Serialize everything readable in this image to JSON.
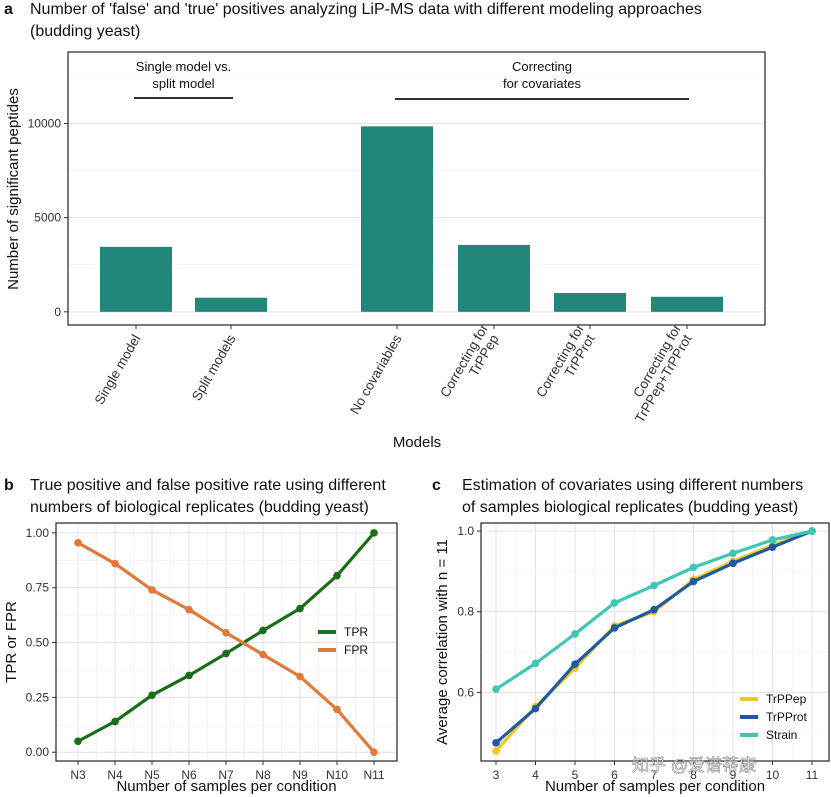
{
  "watermark": "知乎 @爱谱蒂康",
  "colors": {
    "bar": "#22867a",
    "tpr": "#1a6e1a",
    "fpr": "#e07a3a",
    "trppep": "#f2c521",
    "trpprot": "#1d5aa0",
    "strain": "#3fc6b4"
  },
  "chart_data": [
    {
      "id": "a",
      "type": "bar",
      "letter": "a",
      "title_lines": [
        "Number of 'false' and 'true' positives analyzing LiP-MS data with different modeling approaches",
        "(budding yeast)"
      ],
      "xlabel": "Models",
      "ylabel": "Number of significant peptides",
      "ylim": [
        -700,
        13800
      ],
      "yticks": [
        0,
        5000,
        10000
      ],
      "categories": [
        {
          "lines": [
            "Single model"
          ],
          "value": 3450
        },
        {
          "lines": [
            "Split models"
          ],
          "value": 750
        },
        {
          "lines": [
            "No covariables"
          ],
          "value": 9850
        },
        {
          "lines": [
            "Correcting for",
            "TrPPep"
          ],
          "value": 3550
        },
        {
          "lines": [
            "Correcting for",
            "TrPProt"
          ],
          "value": 1000
        },
        {
          "lines": [
            "Correcting for",
            "TrPPep+TrPProt"
          ],
          "value": 800
        }
      ],
      "brackets": [
        {
          "lines": [
            "Single model vs.",
            "split model"
          ],
          "from": 0,
          "to": 1
        },
        {
          "lines": [
            "Correcting",
            "for covariates"
          ],
          "from": 2,
          "to": 5
        }
      ]
    },
    {
      "id": "b",
      "type": "line",
      "letter": "b",
      "title_lines": [
        "True positive and false positive rate using different",
        "numbers of biological replicates (budding yeast)"
      ],
      "xlabel": "Number of samples per condition",
      "ylabel": "TPR or FPR",
      "categories": [
        "N3",
        "N4",
        "N5",
        "N6",
        "N7",
        "N8",
        "N9",
        "N10",
        "N11"
      ],
      "ylim": [
        -0.04,
        1.045
      ],
      "yticks": [
        "0.00",
        "0.25",
        "0.50",
        "0.75",
        "1.00"
      ],
      "legend_position": "right",
      "series": [
        {
          "name": "TPR",
          "color": "#1a6e1a",
          "values": [
            0.05,
            0.14,
            0.26,
            0.35,
            0.45,
            0.555,
            0.655,
            0.805,
            1.0
          ]
        },
        {
          "name": "FPR",
          "color": "#e07a3a",
          "values": [
            0.955,
            0.86,
            0.74,
            0.65,
            0.545,
            0.445,
            0.345,
            0.195,
            0.0
          ]
        }
      ]
    },
    {
      "id": "c",
      "type": "line",
      "letter": "c",
      "title_lines": [
        "Estimation of covariates using different numbers",
        "of samples biological replicates (budding yeast)"
      ],
      "xlabel": "Number of samples per condition",
      "ylabel": "Average correlation with n = 11",
      "x": [
        "3",
        "4",
        "5",
        "6",
        "7",
        "8",
        "9",
        "10",
        "11"
      ],
      "ylim": [
        0.43,
        1.02
      ],
      "yticks": [
        "0.6",
        "0.8",
        "1.0"
      ],
      "legend_position": "bottom-right",
      "series": [
        {
          "name": "TrPPep",
          "color": "#f2c521",
          "values": [
            0.455,
            0.565,
            0.66,
            0.765,
            0.8,
            0.88,
            0.925,
            0.965,
            1.0
          ]
        },
        {
          "name": "TrPProt",
          "color": "#1d5aa0",
          "values": [
            0.475,
            0.56,
            0.67,
            0.76,
            0.805,
            0.875,
            0.92,
            0.96,
            1.0
          ]
        },
        {
          "name": "Strain",
          "color": "#3fc6b4",
          "values": [
            0.608,
            0.672,
            0.745,
            0.822,
            0.865,
            0.91,
            0.945,
            0.978,
            1.0
          ]
        }
      ]
    }
  ]
}
